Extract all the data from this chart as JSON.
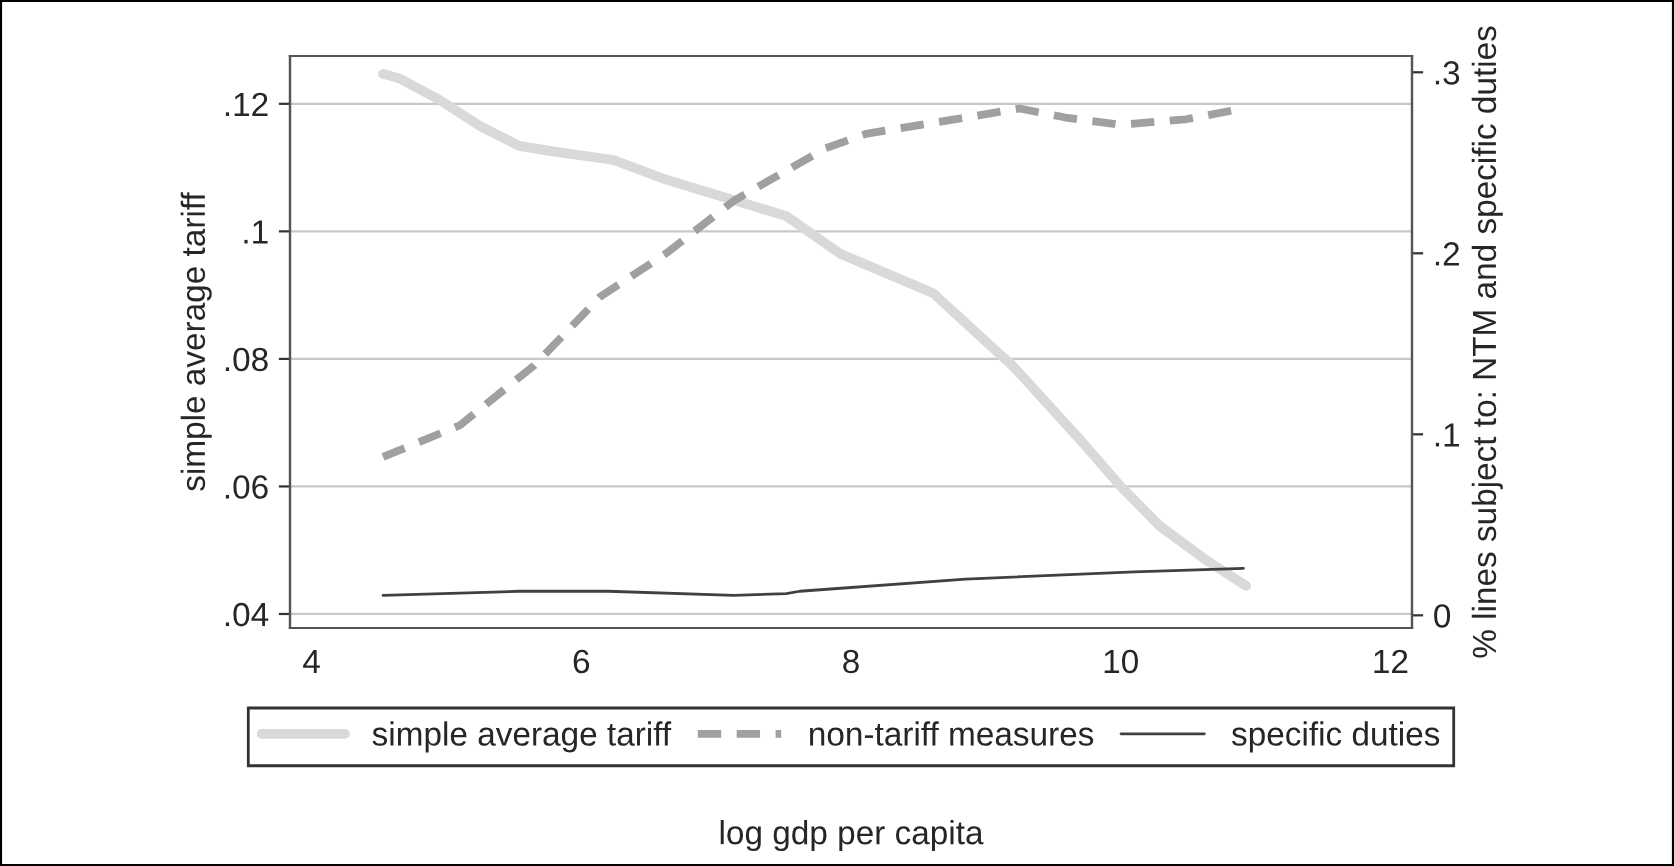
{
  "chart_data": {
    "type": "line",
    "xlabel": "log gdp per capita",
    "ylabel": "simple average tariff",
    "y2label": "% lines subject to: NTM and specific duties",
    "xlim": [
      3.84,
      12.16
    ],
    "xticks": [
      4,
      6,
      8,
      10,
      12
    ],
    "ylim": [
      0.0378,
      0.1275
    ],
    "yticks": [
      {
        "value": 0.04,
        "label": ".04"
      },
      {
        "value": 0.06,
        "label": ".06"
      },
      {
        "value": 0.08,
        "label": ".08"
      },
      {
        "value": 0.1,
        "label": ".1"
      },
      {
        "value": 0.12,
        "label": ".12"
      }
    ],
    "y2lim": [
      -0.007,
      0.309
    ],
    "y2ticks": [
      0,
      {
        "value": 0.1,
        "label": ".1"
      },
      {
        "value": 0.2,
        "label": ".2"
      },
      {
        "value": 0.3,
        "label": ".3"
      }
    ],
    "grid": "y",
    "legend": "bottom",
    "series": [
      {
        "name": "simple average tariff",
        "color": "#d9d9d9",
        "line_style": "solid",
        "x": [
          4.53,
          4.65,
          4.95,
          5.25,
          5.54,
          5.8,
          6.24,
          6.63,
          7.13,
          7.52,
          7.92,
          8.61,
          9.1,
          9.2,
          9.7,
          10.0,
          10.29,
          10.63,
          10.93
        ],
        "values": [
          0.1247,
          0.124,
          0.1206,
          0.1165,
          0.1134,
          0.1125,
          0.1112,
          0.1081,
          0.1049,
          0.1024,
          0.0965,
          0.0903,
          0.0808,
          0.0789,
          0.0673,
          0.06,
          0.0538,
          0.0485,
          0.0444
        ]
      },
      {
        "name": "non-tariff measures",
        "color": "#a0a0a0",
        "line_style": "dashed",
        "axis": "y2",
        "x": [
          4.53,
          5.1,
          5.65,
          6.14,
          6.63,
          7.13,
          7.81,
          8.11,
          8.85,
          9.25,
          9.59,
          10.0,
          10.48,
          10.91
        ],
        "values": [
          0.0875,
          0.105,
          0.138,
          0.176,
          0.2,
          0.229,
          0.258,
          0.266,
          0.275,
          0.28,
          0.275,
          0.271,
          0.274,
          0.28
        ]
      },
      {
        "name": "specific duties",
        "color": "#404040",
        "line_style": "solid",
        "axis": "y2",
        "x": [
          4.53,
          5.54,
          6.2,
          7.13,
          7.52,
          7.62,
          8.85,
          10.1,
          10.91
        ],
        "values": [
          0.011,
          0.0133,
          0.0133,
          0.011,
          0.012,
          0.0133,
          0.02,
          0.024,
          0.026
        ]
      }
    ]
  }
}
